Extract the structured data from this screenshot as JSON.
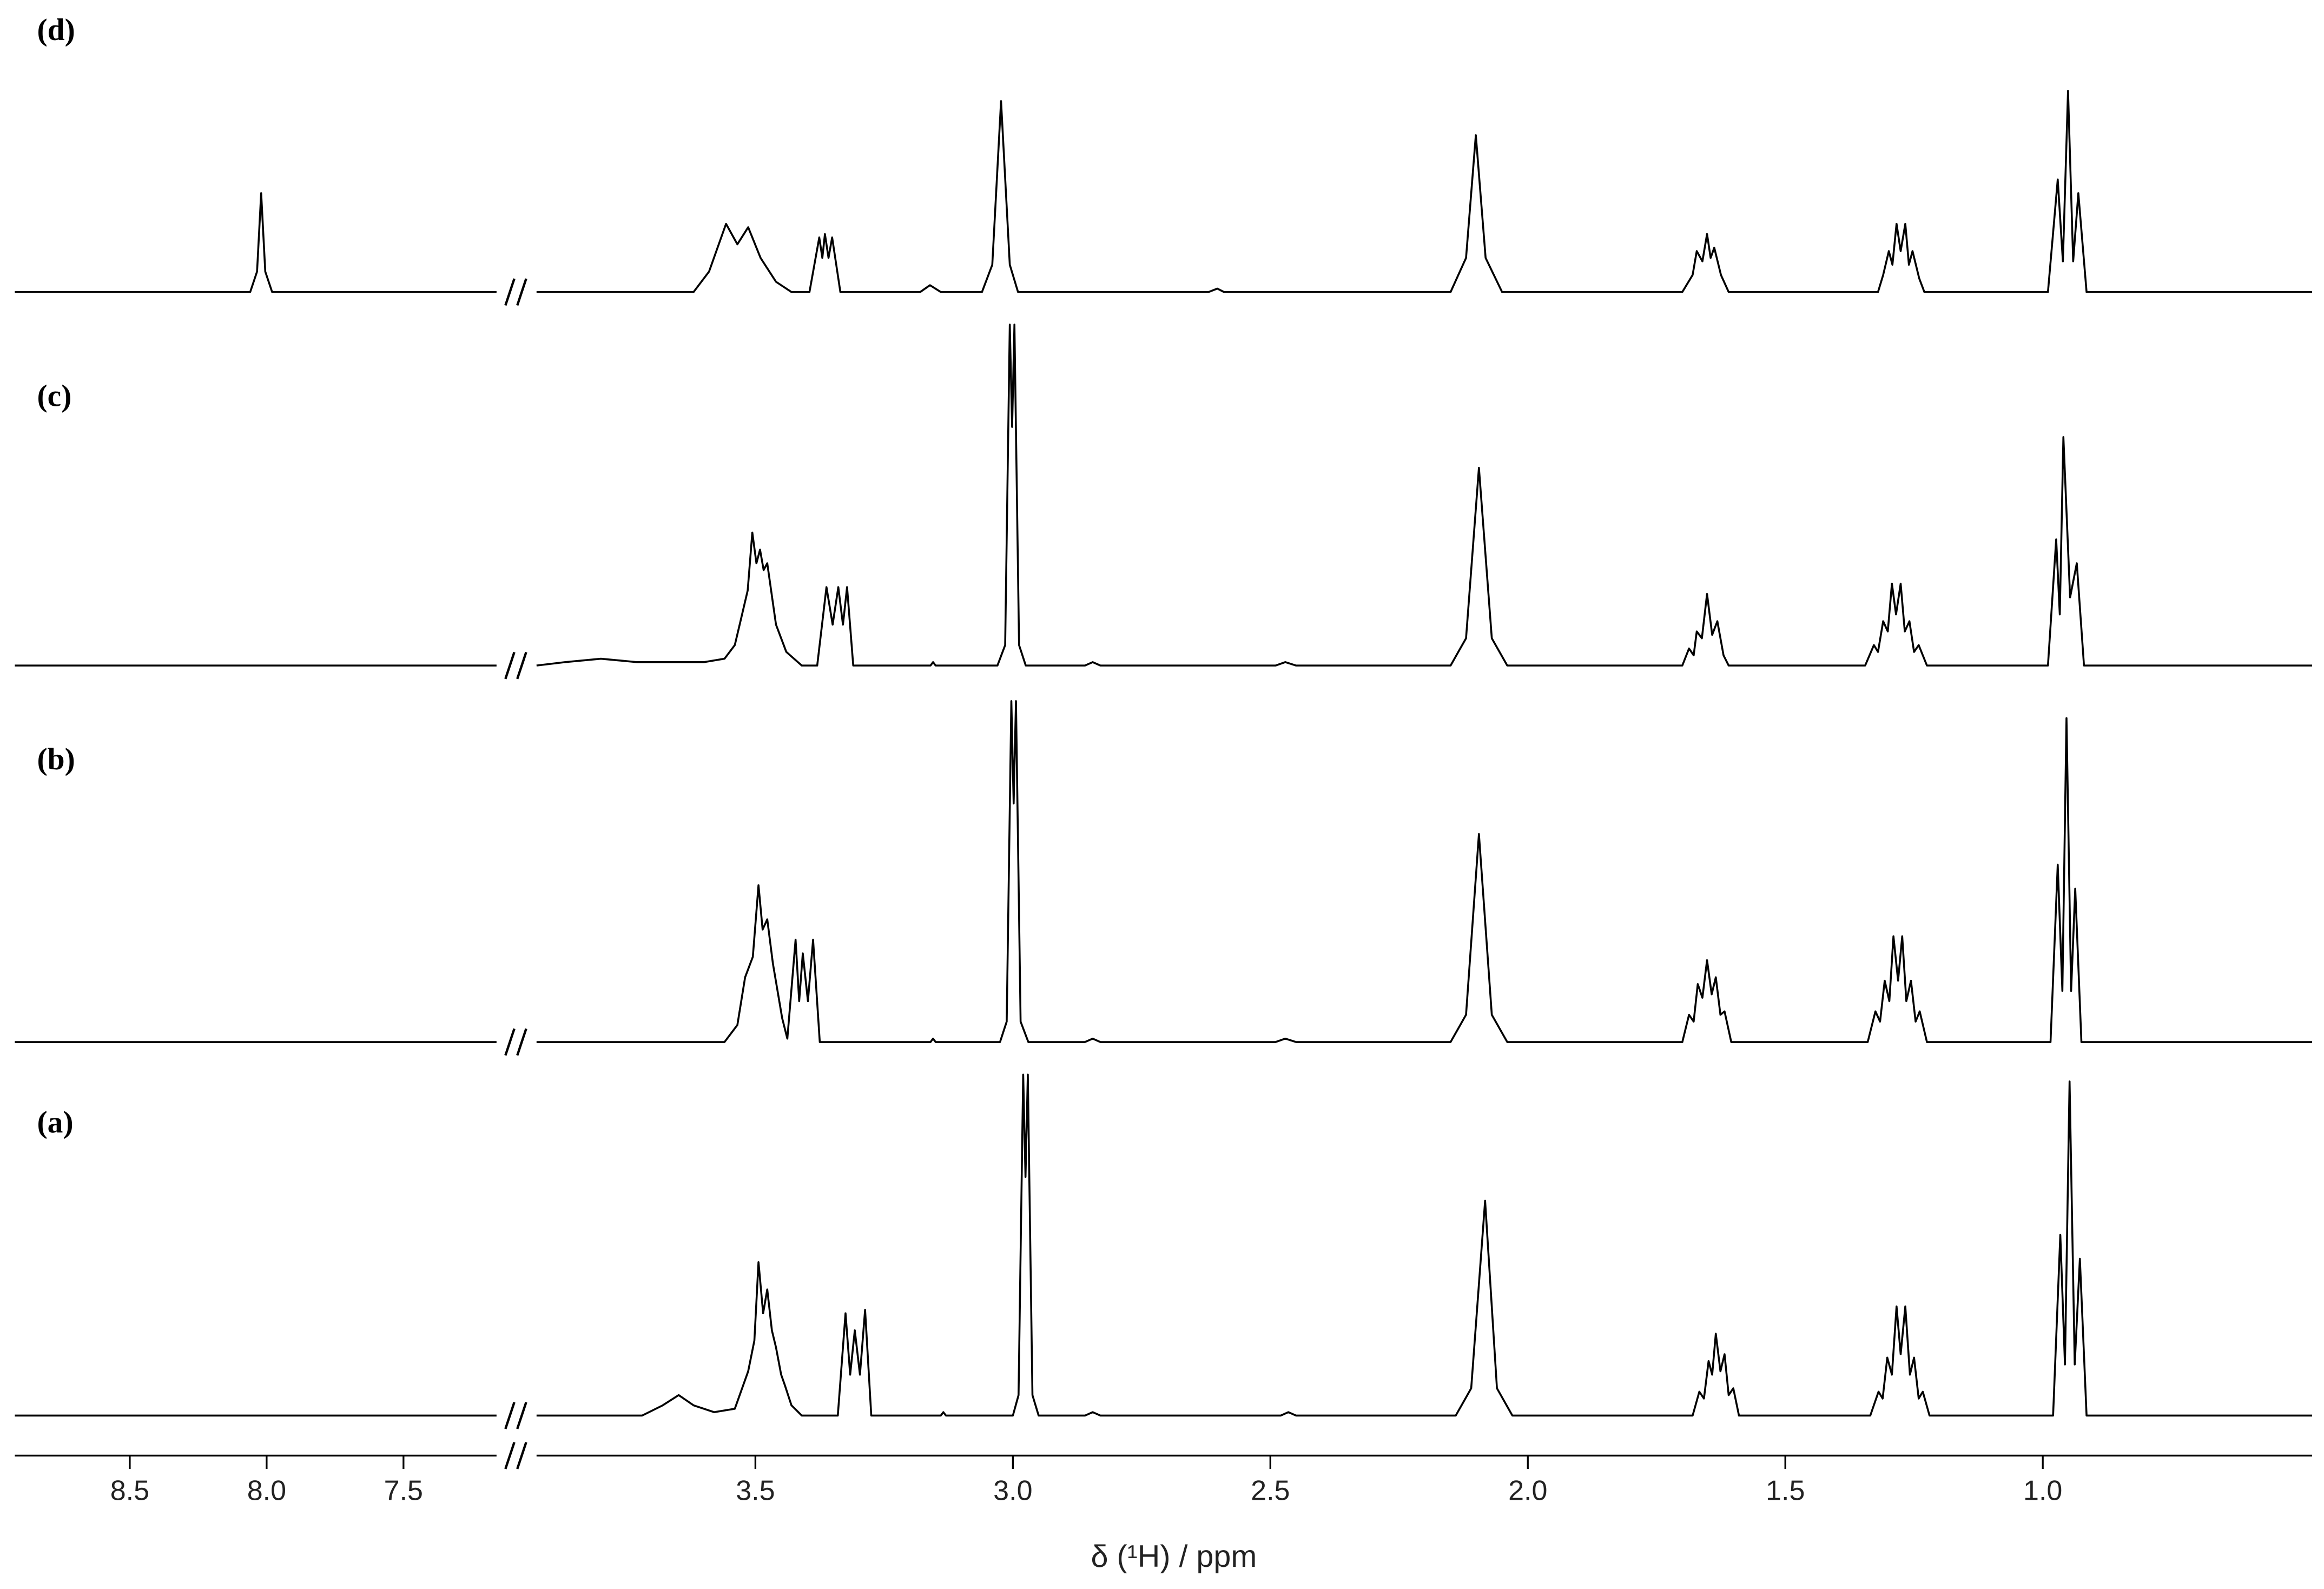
{
  "chart_data": {
    "type": "line",
    "xlabel": "δ (¹H) / ppm",
    "xlim": [
      8.92,
      0.477
    ],
    "xbreak": [
      7.16,
      3.925
    ],
    "xticks": [
      8.5,
      {
        "value": 8,
        "label": "8.0"
      },
      7.5,
      3.5,
      {
        "value": 3,
        "label": "3.0"
      },
      2.5,
      {
        "value": 2,
        "label": "2.0"
      },
      1.5,
      {
        "value": 1,
        "label": "1.0"
      }
    ],
    "ylim": [
      0,
      100
    ],
    "series": [
      {
        "name": "(d)",
        "color": "#000000",
        "x": [
          8.92,
          8.06,
          8.035,
          8.02,
          8.005,
          7.98,
          7.16,
          null,
          3.925,
          3.62,
          3.59,
          3.557,
          3.535,
          3.514,
          3.49,
          3.46,
          3.43,
          3.395,
          3.376,
          3.37,
          3.365,
          3.358,
          3.351,
          3.335,
          3.18,
          3.161,
          3.14,
          3.06,
          3.04,
          3.023,
          3.006,
          2.99,
          2.62,
          2.603,
          2.59,
          2.15,
          2.12,
          2.101,
          2.082,
          2.05,
          1.7,
          1.68,
          1.672,
          1.661,
          1.652,
          1.645,
          1.638,
          1.625,
          1.61,
          1.32,
          1.31,
          1.299,
          1.292,
          1.284,
          1.276,
          1.267,
          1.26,
          1.253,
          1.24,
          1.23,
          0.99,
          0.971,
          0.961,
          0.951,
          0.941,
          0.931,
          0.915,
          0.477
        ],
        "values": [
          0,
          0,
          6,
          29,
          6,
          0,
          0,
          null,
          0,
          0,
          6,
          20,
          14,
          19,
          10,
          3,
          0,
          0,
          16,
          10,
          17,
          10,
          16,
          0,
          0,
          2,
          0,
          0,
          8,
          56,
          8,
          0,
          0,
          1,
          0,
          0,
          10,
          46,
          10,
          0,
          0,
          5,
          12,
          9,
          17,
          10,
          13,
          5,
          0,
          0,
          5,
          12,
          8,
          20,
          12,
          20,
          8,
          12,
          4,
          0,
          0,
          33,
          9,
          59,
          9,
          29,
          0,
          0
        ]
      },
      {
        "name": "(c)",
        "color": "#000000",
        "x": [
          8.92,
          7.16,
          null,
          3.925,
          3.87,
          3.8,
          3.73,
          3.6,
          3.56,
          3.54,
          3.529,
          3.515,
          3.506,
          3.498,
          3.491,
          3.484,
          3.477,
          3.46,
          3.44,
          3.41,
          3.38,
          3.362,
          3.35,
          3.339,
          3.33,
          3.322,
          3.31,
          3.16,
          3.155,
          3.15,
          3.03,
          3.015,
          3.006,
          3.0015,
          2.997,
          2.988,
          2.975,
          2.86,
          2.845,
          2.83,
          2.49,
          2.471,
          2.45,
          2.15,
          2.12,
          2.095,
          2.07,
          2.04,
          1.7,
          1.687,
          1.678,
          1.672,
          1.662,
          1.652,
          1.642,
          1.632,
          1.62,
          1.61,
          1.345,
          1.328,
          1.32,
          1.31,
          1.301,
          1.293,
          1.285,
          1.276,
          1.268,
          1.259,
          1.25,
          1.241,
          1.225,
          0.99,
          0.974,
          0.967,
          0.96,
          0.947,
          0.934,
          0.92,
          0.477
        ],
        "values": [
          0,
          0,
          null,
          0,
          1,
          2,
          1,
          1,
          2,
          6,
          13,
          22,
          39,
          30,
          34,
          28,
          30,
          12,
          4,
          0,
          0,
          23,
          12,
          23,
          12,
          23,
          0,
          0,
          1,
          0,
          0,
          6,
          100,
          70,
          100,
          6,
          0,
          0,
          1,
          0,
          0,
          1,
          0,
          0,
          8,
          58,
          8,
          0,
          0,
          5,
          3,
          10,
          8,
          21,
          9,
          13,
          3,
          0,
          0,
          6,
          4,
          13,
          10,
          24,
          15,
          24,
          10,
          13,
          4,
          6,
          0,
          0,
          37,
          15,
          67,
          20,
          30,
          0,
          0
        ]
      },
      {
        "name": "(b)",
        "color": "#000000",
        "x": [
          8.92,
          7.16,
          null,
          3.925,
          3.56,
          3.535,
          3.52,
          3.505,
          3.494,
          3.486,
          3.477,
          3.466,
          3.448,
          3.438,
          3.422,
          3.415,
          3.408,
          3.398,
          3.388,
          3.375,
          3.16,
          3.155,
          3.15,
          3.025,
          3.012,
          3.003,
          2.9985,
          2.994,
          2.985,
          2.97,
          2.86,
          2.845,
          2.83,
          2.49,
          2.471,
          2.45,
          2.15,
          2.12,
          2.095,
          2.07,
          2.04,
          1.7,
          1.687,
          1.678,
          1.67,
          1.661,
          1.652,
          1.643,
          1.635,
          1.626,
          1.618,
          1.605,
          1.34,
          1.325,
          1.316,
          1.307,
          1.298,
          1.29,
          1.281,
          1.273,
          1.265,
          1.256,
          1.247,
          1.239,
          1.225,
          0.985,
          0.971,
          0.962,
          0.954,
          0.945,
          0.937,
          0.925,
          0.477
        ],
        "values": [
          0,
          0,
          null,
          0,
          0,
          5,
          19,
          25,
          46,
          33,
          36,
          23,
          7,
          1,
          30,
          12,
          26,
          12,
          30,
          0,
          0,
          1,
          0,
          0,
          6,
          100,
          70,
          100,
          6,
          0,
          0,
          1,
          0,
          0,
          1,
          0,
          0,
          8,
          61,
          8,
          0,
          0,
          8,
          6,
          17,
          13,
          24,
          14,
          19,
          8,
          9,
          0,
          0,
          9,
          6,
          18,
          12,
          31,
          18,
          31,
          12,
          18,
          6,
          9,
          0,
          0,
          52,
          15,
          95,
          15,
          45,
          0,
          0
        ]
      },
      {
        "name": "(a)",
        "color": "#000000",
        "x": [
          8.92,
          7.16,
          null,
          3.925,
          3.72,
          3.68,
          3.649,
          3.62,
          3.58,
          3.54,
          3.514,
          3.502,
          3.494,
          3.485,
          3.477,
          3.468,
          3.46,
          3.45,
          3.443,
          3.43,
          3.41,
          3.34,
          3.325,
          3.316,
          3.307,
          3.297,
          3.287,
          3.275,
          3.14,
          3.135,
          3.13,
          3.0,
          2.989,
          2.98,
          2.9755,
          2.971,
          2.962,
          2.95,
          2.86,
          2.845,
          2.83,
          2.48,
          2.465,
          2.45,
          2.14,
          2.11,
          2.083,
          2.06,
          2.03,
          1.68,
          1.667,
          1.658,
          1.649,
          1.642,
          1.635,
          1.626,
          1.618,
          1.61,
          1.601,
          1.59,
          1.335,
          1.319,
          1.311,
          1.302,
          1.293,
          1.284,
          1.276,
          1.267,
          1.258,
          1.25,
          1.241,
          1.233,
          1.22,
          0.98,
          0.966,
          0.957,
          0.948,
          0.938,
          0.928,
          0.915,
          0.477
        ],
        "values": [
          0,
          0,
          null,
          0,
          0,
          3,
          6,
          3,
          1,
          2,
          13,
          22,
          45,
          30,
          37,
          25,
          20,
          12,
          9,
          3,
          0,
          0,
          30,
          12,
          25,
          12,
          31,
          0,
          0,
          1,
          0,
          0,
          6,
          100,
          70,
          100,
          6,
          0,
          0,
          1,
          0,
          0,
          1,
          0,
          0,
          8,
          63,
          8,
          0,
          0,
          7,
          5,
          16,
          12,
          24,
          13,
          18,
          6,
          8,
          0,
          0,
          7,
          5,
          17,
          12,
          32,
          18,
          32,
          12,
          17,
          5,
          7,
          0,
          0,
          53,
          15,
          98,
          15,
          46,
          0,
          0
        ]
      }
    ]
  }
}
